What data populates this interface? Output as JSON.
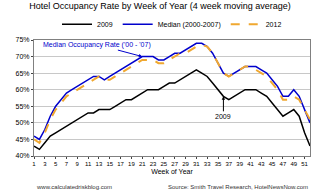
{
  "chart_data": {
    "type": "line",
    "title": "Hotel Occupancy Rate by Week of Year (4 week moving average)",
    "x_label": "Week of Year",
    "x": [
      1,
      2,
      3,
      4,
      5,
      6,
      7,
      8,
      9,
      10,
      11,
      12,
      13,
      14,
      15,
      16,
      17,
      18,
      19,
      20,
      21,
      22,
      23,
      24,
      25,
      26,
      27,
      28,
      29,
      30,
      31,
      32,
      33,
      34,
      35,
      36,
      37,
      38,
      39,
      40,
      41,
      42,
      43,
      44,
      45,
      46,
      47,
      48,
      49,
      50,
      51,
      52
    ],
    "series": [
      {
        "name": "2009",
        "color": "#000000",
        "line_style": "solid",
        "values": [
          43,
          42,
          44,
          46,
          47,
          48,
          49,
          50,
          51,
          52,
          53,
          53,
          54,
          54,
          54,
          55,
          56,
          57,
          57,
          58,
          59,
          60,
          60,
          60,
          61,
          62,
          62,
          63,
          64,
          65,
          66,
          65,
          64,
          62,
          60,
          58,
          57,
          58,
          59,
          60,
          60,
          60,
          59,
          58,
          56,
          54,
          52,
          53,
          54,
          52,
          47,
          43
        ]
      },
      {
        "name": "Median (2000-2007)",
        "color": "#0000cc",
        "line_style": "solid",
        "values": [
          46,
          45,
          48,
          52,
          55,
          57,
          59,
          60,
          61,
          62,
          63,
          64,
          64,
          63,
          64,
          65,
          66,
          67,
          68,
          69,
          70,
          70,
          70,
          69,
          69,
          70,
          71,
          71,
          72,
          73,
          74,
          74,
          73,
          71,
          68,
          65,
          64,
          65,
          66,
          67,
          67,
          67,
          66,
          65,
          63,
          61,
          58,
          58,
          60,
          58,
          54,
          50
        ]
      },
      {
        "name": "2012",
        "color": "#f0a830",
        "line_style": "dash",
        "values": [
          45,
          44,
          47,
          51,
          54,
          56,
          58,
          59,
          60,
          61,
          62,
          63,
          64,
          63,
          63,
          64,
          65,
          66,
          67,
          68,
          69,
          69,
          69,
          68,
          68,
          69,
          70,
          71,
          71,
          72,
          73,
          73.5,
          73,
          71,
          68,
          65,
          64,
          65,
          66,
          67,
          67,
          66,
          65,
          64,
          62,
          60,
          57,
          57,
          58,
          57,
          54,
          51
        ]
      }
    ],
    "xlim": [
      1,
      52
    ],
    "xticks": [
      1,
      3,
      5,
      7,
      9,
      11,
      13,
      15,
      17,
      19,
      21,
      23,
      25,
      27,
      29,
      31,
      33,
      35,
      37,
      39,
      41,
      43,
      45,
      47,
      49,
      51
    ],
    "ylim": [
      40,
      75
    ],
    "yticks": [
      {
        "value": 40,
        "label": "40%"
      },
      {
        "value": 45,
        "label": "45%"
      },
      {
        "value": 50,
        "label": "50%"
      },
      {
        "value": 55,
        "label": "55%"
      },
      {
        "value": 60,
        "label": "60%"
      },
      {
        "value": 65,
        "label": "65%"
      },
      {
        "value": 70,
        "label": "70%"
      },
      {
        "value": 75,
        "label": "75%"
      }
    ],
    "grid": true,
    "legend": "top",
    "annotations": [
      {
        "text": "Median Occupancy Rate ('00 - '07)",
        "x": 21,
        "y": 70,
        "color": "#0000cc"
      },
      {
        "text": "2009",
        "x": 36,
        "y": 58,
        "color": "#000000"
      }
    ],
    "notes": [
      "www.calculatedriskblog.com",
      "Source: Smith Travel Research, HotelNewsNow.com"
    ]
  }
}
